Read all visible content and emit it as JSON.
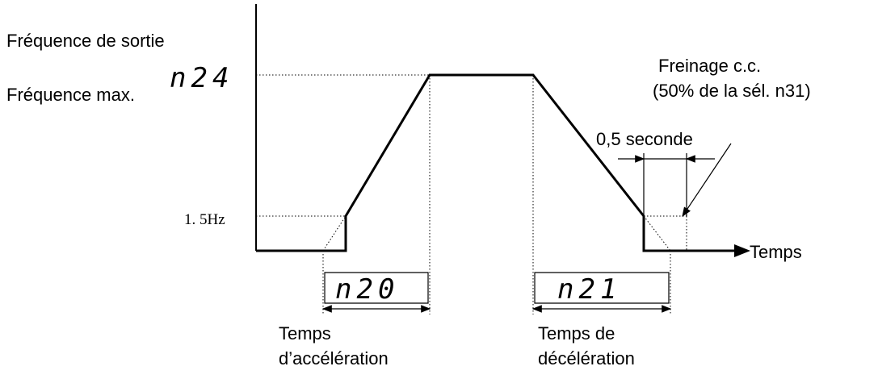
{
  "axis": {
    "y_label": "Fréquence de sortie",
    "y_max_label": "Fréquence max.",
    "y_max_param": "n24",
    "y_low_label": "1. 5Hz",
    "x_label": "Temps"
  },
  "braking": {
    "title": "Freinage c.c.",
    "detail": "(50% de la sél. n31)",
    "duration": "0,5 seconde"
  },
  "acceleration": {
    "param": "n20",
    "label_line1": "Temps",
    "label_line2": "d’accélération"
  },
  "deceleration": {
    "param": "n21",
    "label_line1": "Temps de",
    "label_line2": "décélération"
  }
}
